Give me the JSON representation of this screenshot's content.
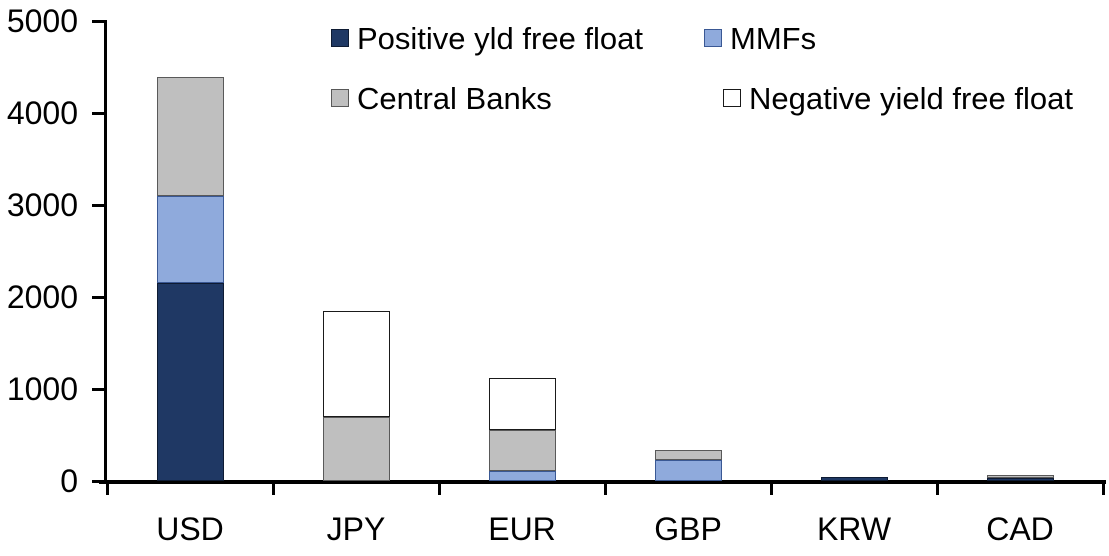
{
  "chart_data": {
    "type": "bar",
    "stacked": true,
    "title": "",
    "xlabel": "",
    "ylabel": "",
    "categories": [
      "USD",
      "JPY",
      "EUR",
      "GBP",
      "KRW",
      "CAD"
    ],
    "series": [
      {
        "name": "Positive yld free float",
        "color": "#1F3864",
        "border_color": "#0E1B33",
        "values": [
          2150,
          0,
          0,
          0,
          45,
          35
        ]
      },
      {
        "name": "MMFs",
        "color": "#8FAADC",
        "border_color": "#3A5894",
        "values": [
          950,
          0,
          110,
          230,
          0,
          0
        ]
      },
      {
        "name": "Central Banks",
        "color": "#BFBFBF",
        "border_color": "#595959",
        "values": [
          1290,
          700,
          440,
          110,
          0,
          30
        ]
      },
      {
        "name": "Negative yield free float",
        "color": "#FFFFFF",
        "border_color": "#1A1A1A",
        "values": [
          0,
          1150,
          570,
          0,
          0,
          0
        ]
      }
    ],
    "stack_totals": [
      4390,
      1850,
      1120,
      340,
      45,
      65
    ],
    "ylim": [
      0,
      5000
    ],
    "yticks": [
      0,
      1000,
      2000,
      3000,
      4000,
      5000
    ],
    "ytick_labels": [
      "0",
      "1000",
      "2000",
      "3000",
      "4000",
      "5000"
    ],
    "grid": false,
    "legend_position": "top, two columns, two rows",
    "axis_color": "#000000",
    "background_color": "#FFFFFF",
    "text_color": "#000000"
  }
}
